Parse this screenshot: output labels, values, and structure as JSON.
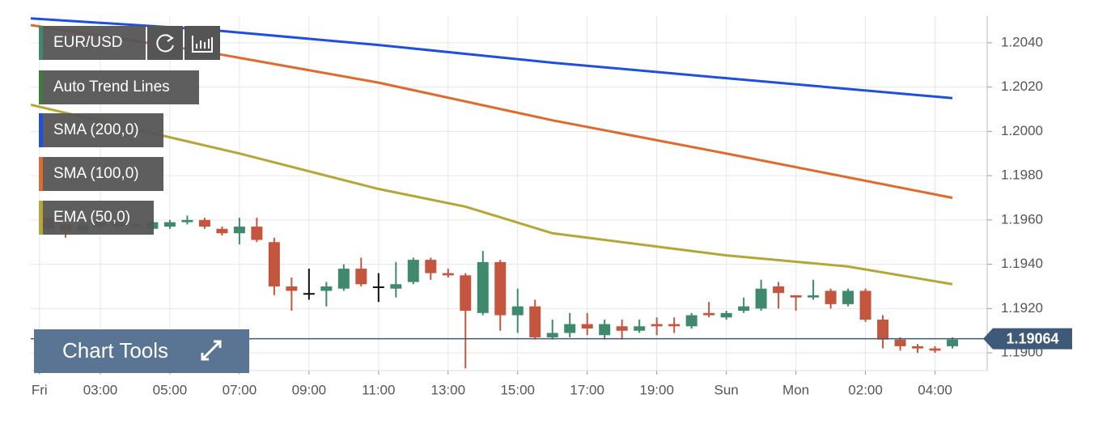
{
  "chart_data": {
    "type": "candlestick",
    "symbol": "EUR/USD",
    "trend_lines": {
      "label": "Auto Trend Lines",
      "color": "#3a7d3a"
    },
    "tools_label": "Chart Tools",
    "xlim": [
      0,
      55
    ],
    "ylim": [
      1.1892,
      1.2052
    ],
    "xticks": [
      {
        "value": 0.5,
        "label": "Fri"
      },
      {
        "value": 4,
        "label": "03:00"
      },
      {
        "value": 8,
        "label": "05:00"
      },
      {
        "value": 12,
        "label": "07:00"
      },
      {
        "value": 16,
        "label": "09:00"
      },
      {
        "value": 20,
        "label": "11:00"
      },
      {
        "value": 24,
        "label": "13:00"
      },
      {
        "value": 28,
        "label": "15:00"
      },
      {
        "value": 32,
        "label": "17:00"
      },
      {
        "value": 36,
        "label": "19:00"
      },
      {
        "value": 40,
        "label": "Sun"
      },
      {
        "value": 44,
        "label": "Mon"
      },
      {
        "value": 48,
        "label": "02:00"
      },
      {
        "value": 52,
        "label": "04:00"
      }
    ],
    "yticks": [
      {
        "value": 1.19,
        "label": "1.1900"
      },
      {
        "value": 1.192,
        "label": "1.1920"
      },
      {
        "value": 1.194,
        "label": "1.1940"
      },
      {
        "value": 1.196,
        "label": "1.1960"
      },
      {
        "value": 1.198,
        "label": "1.1980"
      },
      {
        "value": 1.2,
        "label": "1.2000"
      },
      {
        "value": 1.202,
        "label": "1.2020"
      },
      {
        "value": 1.204,
        "label": "1.2040"
      }
    ],
    "grid": true,
    "up_color": "#3f8a6c",
    "down_color": "#c4553f",
    "doji_color": "#111111",
    "x": [
      1,
      2,
      3,
      4,
      5,
      6,
      7,
      8,
      9,
      10,
      11,
      12,
      13,
      14,
      15,
      16,
      17,
      18,
      19,
      20,
      21,
      22,
      23,
      24,
      25,
      26,
      27,
      28,
      29,
      30,
      31,
      32,
      33,
      34,
      35,
      36,
      37,
      38,
      39,
      40,
      41,
      42,
      43,
      44,
      45,
      46,
      47,
      48,
      49,
      50,
      51,
      52,
      53
    ],
    "open": [
      1.1961,
      1.1958,
      1.1955,
      1.1957,
      1.1959,
      1.1957,
      1.1956,
      1.1957,
      1.1959,
      1.196,
      1.1956,
      1.1954,
      1.1957,
      1.195,
      1.193,
      1.1927,
      1.1928,
      1.1929,
      1.1938,
      1.193,
      1.1929,
      1.1932,
      1.1942,
      1.1936,
      1.1935,
      1.1918,
      1.1941,
      1.1917,
      1.1921,
      1.1907,
      1.1909,
      1.1913,
      1.1908,
      1.1912,
      1.191,
      1.1913,
      1.1913,
      1.1912,
      1.1918,
      1.1916,
      1.1919,
      1.192,
      1.193,
      1.1926,
      1.1925,
      1.1928,
      1.1922,
      1.1928,
      1.1915,
      1.1906,
      1.1903,
      1.1902,
      1.1903
    ],
    "high": [
      1.1962,
      1.1959,
      1.1959,
      1.196,
      1.196,
      1.1959,
      1.196,
      1.196,
      1.1962,
      1.1961,
      1.1957,
      1.1961,
      1.1961,
      1.1952,
      1.1934,
      1.1938,
      1.1932,
      1.194,
      1.1943,
      1.1936,
      1.1941,
      1.1943,
      1.1943,
      1.1938,
      1.1936,
      1.1946,
      1.1942,
      1.1929,
      1.1924,
      1.1915,
      1.1918,
      1.1918,
      1.1915,
      1.1915,
      1.1915,
      1.1916,
      1.1916,
      1.1918,
      1.1923,
      1.1919,
      1.1925,
      1.1933,
      1.1932,
      1.1926,
      1.1933,
      1.1929,
      1.1929,
      1.1929,
      1.1917,
      1.1907,
      1.1904,
      1.1903,
      1.1907
    ],
    "low": [
      1.1954,
      1.1952,
      1.1954,
      1.1956,
      1.1956,
      1.1956,
      1.1955,
      1.1956,
      1.1958,
      1.1956,
      1.1953,
      1.1949,
      1.195,
      1.1926,
      1.1919,
      1.1924,
      1.1921,
      1.1928,
      1.193,
      1.1923,
      1.1925,
      1.1931,
      1.1933,
      1.1934,
      1.1893,
      1.1917,
      1.191,
      1.1909,
      1.1906,
      1.1906,
      1.1907,
      1.1908,
      1.1906,
      1.1906,
      1.1909,
      1.1908,
      1.1909,
      1.1911,
      1.1916,
      1.1915,
      1.1918,
      1.1919,
      1.192,
      1.1919,
      1.1924,
      1.192,
      1.1921,
      1.1914,
      1.1902,
      1.1901,
      1.19,
      1.19,
      1.1902
    ],
    "close": [
      1.1956,
      1.1955,
      1.1958,
      1.1959,
      1.1957,
      1.1958,
      1.1959,
      1.1959,
      1.196,
      1.1957,
      1.1954,
      1.1957,
      1.1951,
      1.193,
      1.1928,
      1.1927,
      1.193,
      1.1938,
      1.1931,
      1.193,
      1.1931,
      1.1942,
      1.1936,
      1.1935,
      1.1919,
      1.1941,
      1.1917,
      1.1921,
      1.1907,
      1.1909,
      1.1913,
      1.1911,
      1.1913,
      1.191,
      1.1912,
      1.1912,
      1.1912,
      1.1917,
      1.1917,
      1.1918,
      1.1921,
      1.1929,
      1.1927,
      1.1925,
      1.1926,
      1.1922,
      1.1928,
      1.1915,
      1.1906,
      1.1903,
      1.1902,
      1.1901,
      1.1906
    ],
    "overlays": [
      {
        "name": "SMA (200,0)",
        "color": "#1f4fe0",
        "x": [
          0,
          10,
          20,
          30,
          40,
          53
        ],
        "values": [
          1.2051,
          1.2046,
          1.2039,
          1.2031,
          1.2024,
          1.2015
        ]
      },
      {
        "name": "SMA (100,0)",
        "color": "#e06a2c",
        "x": [
          0,
          10,
          20,
          30,
          40,
          53
        ],
        "values": [
          1.2048,
          1.2036,
          1.2022,
          1.2005,
          1.199,
          1.197
        ]
      },
      {
        "name": "EMA (50,0)",
        "color": "#b5a636",
        "x": [
          0,
          12,
          20,
          25,
          30,
          40,
          47,
          53
        ],
        "values": [
          1.2012,
          1.199,
          1.1974,
          1.1966,
          1.1954,
          1.1944,
          1.1939,
          1.1931
        ]
      }
    ],
    "last_price": 1.19064,
    "last_price_color": "#3e5a78"
  }
}
